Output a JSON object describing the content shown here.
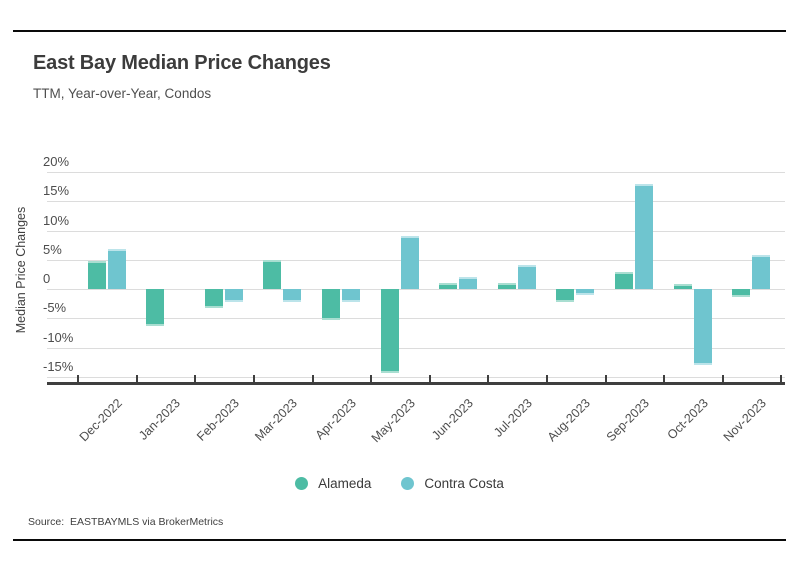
{
  "header": {
    "title": "East Bay Median Price Changes",
    "subtitle": "TTM, Year-over-Year, Condos"
  },
  "chart_data": {
    "type": "bar",
    "title": "East Bay Median Price Changes",
    "subtitle": "TTM, Year-over-Year, Condos",
    "xlabel": "",
    "ylabel": "Median Price Changes",
    "unit": "percent",
    "categories": [
      "Dec-2022",
      "Jan-2023",
      "Feb-2023",
      "Mar-2023",
      "Apr-2023",
      "May-2023",
      "Jun-2023",
      "Jul-2023",
      "Aug-2023",
      "Sep-2023",
      "Oct-2023",
      "Nov-2023"
    ],
    "series": [
      {
        "name": "Alameda",
        "color": "#4dbca4",
        "edge_color": "#a9ded1",
        "values": [
          4.8,
          -6.3,
          -3.3,
          4.9,
          -5.2,
          -14.3,
          1.0,
          1.0,
          -2.2,
          3.0,
          0.9,
          -1.3
        ]
      },
      {
        "name": "Contra Costa",
        "color": "#6fc5cf",
        "edge_color": "#bce4ea",
        "values": [
          6.9,
          0,
          -2.2,
          -2.2,
          -2.2,
          9.1,
          2.0,
          4.1,
          -1.0,
          18.0,
          -12.9,
          5.9
        ]
      }
    ],
    "y_ticks": [
      {
        "value": 20,
        "label": "20%"
      },
      {
        "value": 15,
        "label": "15%"
      },
      {
        "value": 10,
        "label": "10%"
      },
      {
        "value": 5,
        "label": "5%"
      },
      {
        "value": 0,
        "label": "0"
      },
      {
        "value": -5,
        "label": "-5%"
      },
      {
        "value": -10,
        "label": "-10%"
      },
      {
        "value": -15,
        "label": "-15%"
      }
    ],
    "ylim": [
      -15,
      20
    ],
    "grid": true,
    "legend_position": "bottom",
    "colors": {
      "gridline": "#dcdcdc",
      "axis_line": "#3f3f3f",
      "tick_text": "#4d4d4d"
    }
  },
  "footer": {
    "source": "Source:  EASTBAYMLS via BrokerMetrics"
  }
}
